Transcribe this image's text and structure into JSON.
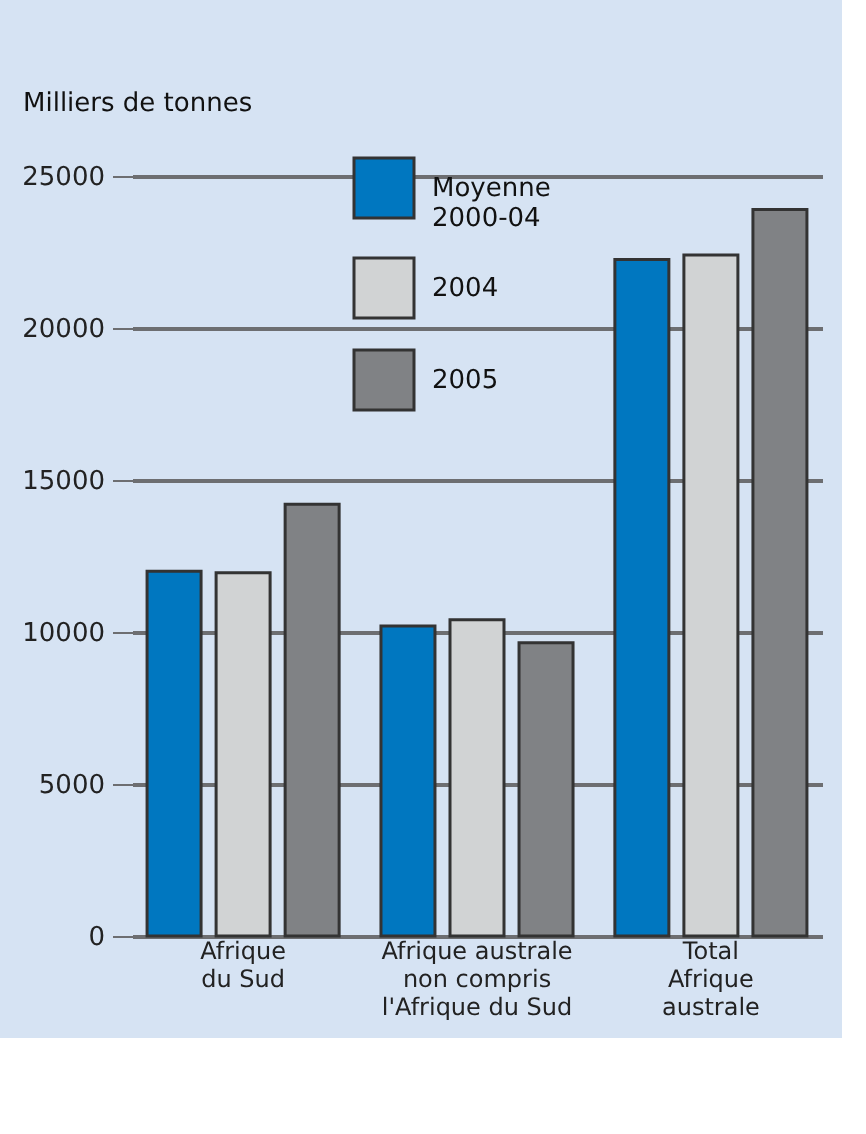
{
  "chart_data": {
    "type": "bar",
    "ylabel": "Milliers de  tonnes",
    "categories": [
      "Afrique\ndu Sud",
      "Afrique australe\nnon compris\nl'Afrique du Sud",
      "Total\nAfrique\naustrale"
    ],
    "series": [
      {
        "name": "Moyenne\n2000-04",
        "color": "#0077c0",
        "values": [
          12000,
          10200,
          22250
        ]
      },
      {
        "name": "2004",
        "color": "#d1d3d4",
        "values": [
          11950,
          10400,
          22400
        ]
      },
      {
        "name": "2005",
        "color": "#808285",
        "values": [
          14200,
          9650,
          23900
        ]
      }
    ],
    "ylim": [
      0,
      25000
    ],
    "yticks": [
      0,
      5000,
      10000,
      15000,
      20000,
      25000
    ],
    "grid": "y",
    "legend": "top"
  }
}
